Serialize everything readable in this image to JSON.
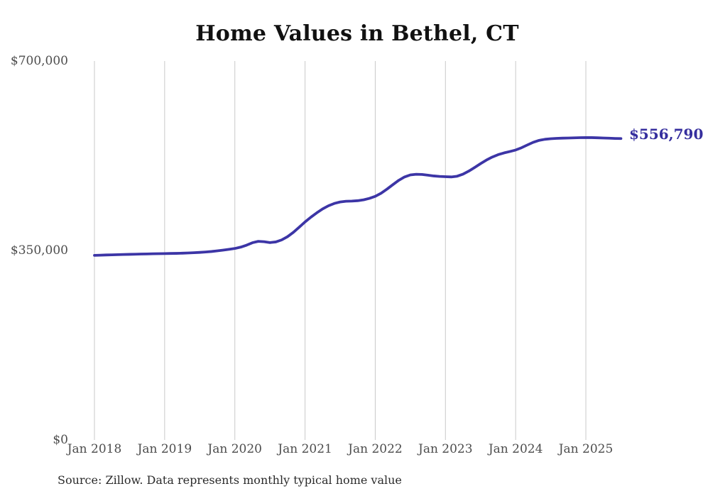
{
  "page": {
    "background": "#ffffff"
  },
  "chart_data": {
    "type": "line",
    "title": "Home Values in Bethel, CT",
    "source_note": "Source: Zillow. Data represents monthly typical home value",
    "frequency": "monthly",
    "x_start": "Jan 2018",
    "x_end": "Jul 2025",
    "x_ticks": [
      "Jan 2018",
      "Jan 2019",
      "Jan 2020",
      "Jan 2021",
      "Jan 2022",
      "Jan 2023",
      "Jan 2024",
      "Jan 2025"
    ],
    "x_tick_interval_months": 12,
    "y_ticks": [
      {
        "value": 0,
        "label": "$0"
      },
      {
        "value": 350000,
        "label": "$350,000"
      },
      {
        "value": 700000,
        "label": "$700,000"
      }
    ],
    "ylim": [
      0,
      700000
    ],
    "grid": "vertical-only",
    "gridline_color": "#c9c9c9",
    "line_color": "#3c35a6",
    "end_label": "$556,790",
    "end_label_color": "#352e9e",
    "end_value": 556790,
    "series": [
      {
        "name": "Typical home value",
        "color": "#3c35a6",
        "values": [
          341000,
          341300,
          341700,
          342000,
          342300,
          342600,
          342900,
          343100,
          343400,
          343600,
          343900,
          344100,
          344300,
          344500,
          344700,
          345000,
          345400,
          345900,
          346500,
          347200,
          348100,
          349300,
          350700,
          352200,
          353700,
          356200,
          359800,
          364300,
          366900,
          366200,
          364600,
          365800,
          369500,
          375500,
          383500,
          393000,
          402800,
          411500,
          419500,
          426800,
          432600,
          436900,
          439600,
          440900,
          441300,
          442000,
          443600,
          446300,
          450000,
          455800,
          463300,
          471500,
          479500,
          485800,
          489600,
          490800,
          490400,
          489100,
          487700,
          486800,
          486300,
          485900,
          487200,
          491000,
          496700,
          503400,
          510400,
          517000,
          522600,
          527000,
          530200,
          532800,
          535600,
          539800,
          544900,
          549800,
          553400,
          555400,
          556500,
          557100,
          557500,
          557800,
          558100,
          558400,
          558600,
          558500,
          558200,
          557800,
          557400,
          557000,
          556790
        ]
      }
    ]
  }
}
